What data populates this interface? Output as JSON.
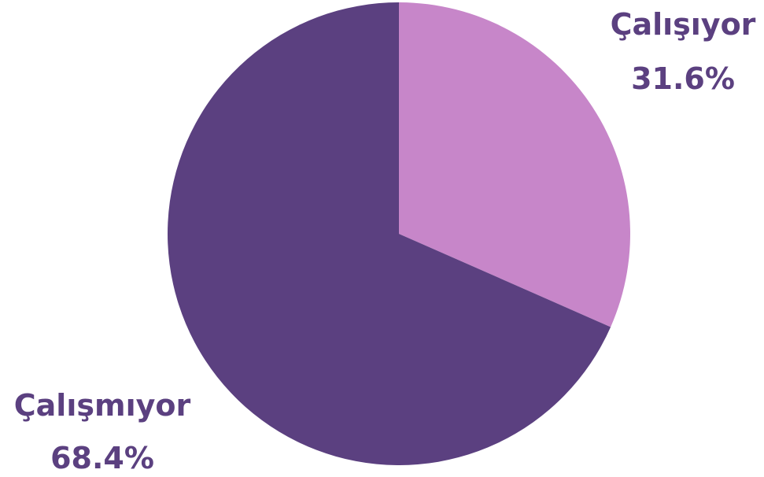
{
  "chart_data": {
    "type": "pie",
    "slices": [
      {
        "label": "Çalışıyor",
        "value": 31.6,
        "value_text": "31.6%",
        "color": "#c786c9"
      },
      {
        "label": "Çalışmıyor",
        "value": 68.4,
        "value_text": "68.4%",
        "color": "#5b4080"
      }
    ],
    "start_angle": "12 o'clock",
    "direction": "clockwise",
    "label_color": "#5b4080"
  }
}
